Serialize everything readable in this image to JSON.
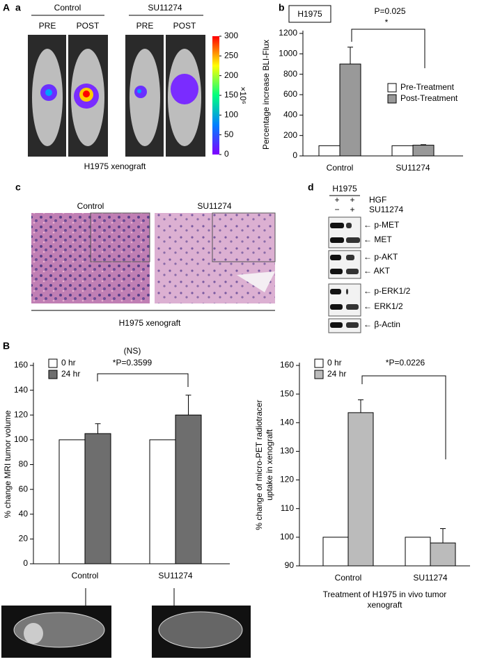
{
  "figure": {
    "panel_labels": [
      "A",
      "a",
      "b",
      "c",
      "d",
      "B"
    ],
    "a": {
      "groups": [
        "Control",
        "SU11274"
      ],
      "timepoints": [
        "PRE",
        "POST",
        "PRE",
        "POST"
      ],
      "caption": "H1975 xenograft",
      "colorbar_ticks": [
        300,
        250,
        200,
        150,
        100,
        50,
        0
      ],
      "colorbar_unit": "×10⁶"
    },
    "c": {
      "images": [
        "Control",
        "SU11274"
      ],
      "caption": "H1975 xenograft"
    },
    "d": {
      "cell_line": "H1975",
      "treatments": [
        {
          "name": "HGF",
          "lanes": [
            "+",
            "+"
          ]
        },
        {
          "name": "SU11274",
          "lanes": [
            "−",
            "+"
          ]
        }
      ],
      "bands": [
        "← p-MET",
        "← MET",
        "← p-AKT",
        "← AKT",
        "← p-ERK1/2",
        "← ERK1/2",
        "← β-Actin"
      ]
    }
  },
  "chart_data": [
    {
      "type": "bar",
      "title": "H1975",
      "annotations": [
        "P=0.025",
        "*"
      ],
      "ylabel": [
        "Percentage increase BLI-Flux"
      ],
      "categories": [
        "Control",
        "SU11274"
      ],
      "series": [
        {
          "name": "Pre-Treatment",
          "color": "#ffffff",
          "values": [
            100,
            100
          ]
        },
        {
          "name": "Post-Treatment",
          "color": "#999999",
          "values": [
            900,
            105
          ],
          "errors": [
            165,
            5
          ]
        }
      ],
      "ylim": [
        0,
        1200
      ],
      "yticks": [
        0,
        200,
        400,
        600,
        800,
        1000,
        1200
      ],
      "grid": false,
      "legend": "center right"
    },
    {
      "type": "bar",
      "annotations": [
        "(NS)",
        "*P=0.3599"
      ],
      "ylabel": [
        "% change MRI tumor volume"
      ],
      "categories": [
        "Control",
        "SU11274"
      ],
      "series": [
        {
          "name": "0 hr",
          "color": "#ffffff",
          "values": [
            100,
            100
          ]
        },
        {
          "name": "24 hr",
          "color": "#6e6e6e",
          "values": [
            105,
            120
          ],
          "errors": [
            8,
            16
          ]
        }
      ],
      "ylim": [
        0,
        160
      ],
      "yticks": [
        0,
        20,
        40,
        60,
        80,
        100,
        120,
        140,
        160
      ],
      "grid": false,
      "legend": "upper left"
    },
    {
      "type": "bar",
      "annotations": [
        "*P=0.0226"
      ],
      "ylabel": [
        "% change of micro-PET radiotracer",
        "uptake in xenograft"
      ],
      "xlabel": [
        "Treatment of H1975 in vivo tumor",
        "xenograft"
      ],
      "categories": [
        "Control",
        "SU11274"
      ],
      "series": [
        {
          "name": "0 hr",
          "color": "#ffffff",
          "values": [
            100,
            100
          ]
        },
        {
          "name": "24 hr",
          "color": "#bbbbbb",
          "values": [
            143.5,
            98
          ],
          "errors": [
            4.5,
            5
          ]
        }
      ],
      "ylim": [
        90,
        160
      ],
      "yticks": [
        90,
        100,
        110,
        120,
        130,
        140,
        150,
        160
      ],
      "grid": false,
      "legend": "upper left"
    }
  ]
}
